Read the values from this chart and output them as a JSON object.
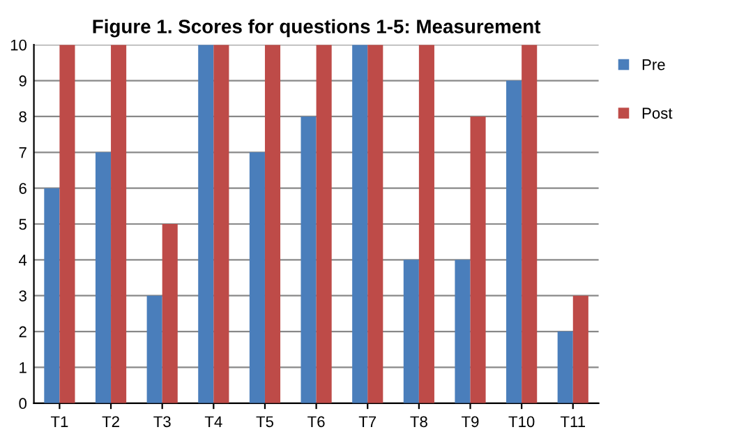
{
  "chart_data": {
    "type": "bar",
    "title": "Figure 1. Scores for questions 1-5: Measurement",
    "categories": [
      "T1",
      "T2",
      "T3",
      "T4",
      "T5",
      "T6",
      "T7",
      "T8",
      "T9",
      "T10",
      "T11"
    ],
    "series": [
      {
        "name": "Pre",
        "color": "#4a7ebb",
        "values": [
          6,
          7,
          3,
          10,
          7,
          8,
          10,
          4,
          4,
          9,
          2
        ]
      },
      {
        "name": "Post",
        "color": "#be4b48",
        "values": [
          10,
          10,
          5,
          10,
          10,
          10,
          10,
          10,
          8,
          10,
          3
        ]
      }
    ],
    "ylim": [
      0,
      10
    ],
    "yticks": [
      0,
      1,
      2,
      3,
      4,
      5,
      6,
      7,
      8,
      9,
      10
    ],
    "grid": "y",
    "legend": "top right"
  }
}
